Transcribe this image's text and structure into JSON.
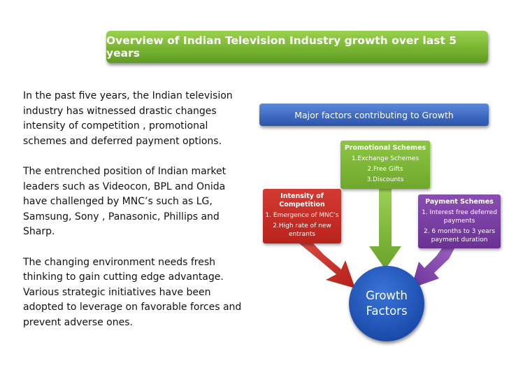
{
  "title": "Overview of Indian Television Industry growth over last 5 years",
  "paragraphs": [
    "In the past five years, the Indian television industry has witnessed drastic changes intensity of competition , promotional schemes and deferred payment options.",
    "The entrenched position of Indian market leaders such as Videocon, BPL and Onida have challenged by MNC’s such as LG, Samsung, Sony , Panasonic, Phillips and Sharp.",
    "The changing environment needs fresh thinking to gain cutting edge advantage. Various strategic initiatives have been adopted to leverage on favorable forces and prevent adverse ones."
  ],
  "diagram": {
    "header": "Major factors contributing to Growth",
    "competition": {
      "title": "Intensity of Competition",
      "items": [
        "1. Emergence of MNC’s",
        "2.High rate of new entrants"
      ],
      "color": "#c62d25"
    },
    "promotional": {
      "title": "Promotional Schemes",
      "items": [
        "1.Exchange Schemes",
        "2.Free Gifts",
        "3.Discounts"
      ],
      "color": "#7db737"
    },
    "payment": {
      "title": "Payment Schemes",
      "items": [
        "1. Interest free deferred payments",
        "2. 6 months to 3 years payment duration"
      ],
      "color": "#7a3fa3"
    },
    "center": {
      "line1": "Growth",
      "line2": "Factors",
      "color": "#2a5fc4"
    }
  }
}
